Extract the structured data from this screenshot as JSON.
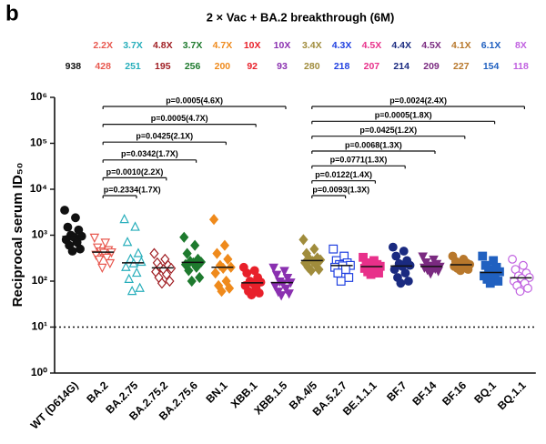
{
  "panel_label": "b",
  "chart_data": {
    "type": "scatter",
    "title": "2 × Vac + BA.2 breakthrough (6M)",
    "y_label": "Reciprocal serum ID₅₀",
    "log_y": true,
    "ylim": [
      1,
      1000000
    ],
    "yticks": [
      {
        "value": 1,
        "label": "10⁰"
      },
      {
        "value": 10,
        "label": "10¹"
      },
      {
        "value": 100,
        "label": "10²"
      },
      {
        "value": 1000,
        "label": "10³"
      },
      {
        "value": 10000,
        "label": "10⁴"
      },
      {
        "value": 100000,
        "label": "10⁵"
      },
      {
        "value": 1000000,
        "label": "10⁶"
      }
    ],
    "reference_line": 10,
    "series": [
      {
        "name": "WT (D614G)",
        "color": "#111111",
        "marker": "circle",
        "filled": true,
        "median": 938,
        "values": [
          3500,
          2400,
          1500,
          1300,
          1000,
          950,
          900,
          800,
          700,
          600,
          500,
          450
        ]
      },
      {
        "name": "BA.2",
        "color": "#e8584f",
        "marker": "triangle-down",
        "filled": false,
        "fold": "2.2X",
        "median": 428,
        "values": [
          900,
          700,
          550,
          480,
          450,
          430,
          420,
          380,
          330,
          300,
          250,
          200
        ]
      },
      {
        "name": "BA.2.75",
        "color": "#27aebb",
        "marker": "triangle",
        "filled": false,
        "fold": "3.7X",
        "median": 251,
        "values": [
          2200,
          1500,
          700,
          400,
          300,
          260,
          240,
          200,
          150,
          110,
          70,
          60
        ]
      },
      {
        "name": "BA.2.75.2",
        "color": "#a01f24",
        "marker": "diamond",
        "filled": false,
        "fold": "4.8X",
        "median": 195,
        "values": [
          400,
          300,
          250,
          220,
          200,
          190,
          180,
          160,
          140,
          120,
          100,
          90
        ]
      },
      {
        "name": "BA.2.75.6",
        "color": "#1e7a2e",
        "marker": "diamond",
        "filled": true,
        "fold": "3.7X",
        "median": 256,
        "values": [
          900,
          600,
          400,
          300,
          270,
          260,
          250,
          230,
          200,
          170,
          120,
          100
        ]
      },
      {
        "name": "BN.1",
        "color": "#ef8a1c",
        "marker": "diamond",
        "filled": true,
        "fold": "4.7X",
        "median": 200,
        "values": [
          2200,
          600,
          400,
          300,
          220,
          200,
          190,
          150,
          100,
          80,
          70,
          60
        ]
      },
      {
        "name": "XBB.1",
        "color": "#e8202a",
        "marker": "circle",
        "filled": true,
        "fold": "10X",
        "median": 92,
        "values": [
          200,
          170,
          150,
          120,
          100,
          95,
          90,
          80,
          70,
          60,
          55,
          50
        ]
      },
      {
        "name": "XBB.1.5",
        "color": "#8a30b0",
        "marker": "triangle-down",
        "filled": true,
        "fold": "10X",
        "median": 93,
        "values": [
          200,
          170,
          140,
          120,
          100,
          95,
          90,
          80,
          70,
          60,
          55,
          50
        ]
      },
      {
        "name": "BA.4/5",
        "color": "#a08c3c",
        "marker": "diamond",
        "filled": true,
        "fold": "3.4X",
        "median": 280,
        "values": [
          800,
          500,
          400,
          320,
          300,
          290,
          270,
          250,
          230,
          200,
          180,
          170
        ]
      },
      {
        "name": "BA.5.2.7",
        "color": "#2040e0",
        "marker": "square",
        "filled": false,
        "fold": "4.3X",
        "median": 218,
        "values": [
          500,
          350,
          280,
          250,
          230,
          220,
          215,
          200,
          180,
          150,
          120,
          100
        ]
      },
      {
        "name": "BE.1.1.1",
        "color": "#e8308a",
        "marker": "square",
        "filled": true,
        "fold": "4.5X",
        "median": 207,
        "values": [
          330,
          280,
          250,
          230,
          220,
          210,
          205,
          190,
          180,
          160,
          150,
          140
        ]
      },
      {
        "name": "BF.7",
        "color": "#1a2a80",
        "marker": "circle",
        "filled": true,
        "fold": "4.4X",
        "median": 214,
        "values": [
          550,
          450,
          350,
          280,
          240,
          220,
          210,
          180,
          150,
          120,
          100,
          90
        ]
      },
      {
        "name": "BF.14",
        "color": "#7a2a80",
        "marker": "triangle-down",
        "filled": true,
        "fold": "4.5X",
        "median": 209,
        "values": [
          350,
          300,
          260,
          240,
          220,
          210,
          205,
          200,
          190,
          180,
          170,
          150
        ]
      },
      {
        "name": "BF.16",
        "color": "#b8782c",
        "marker": "circle",
        "filled": true,
        "fold": "4.1X",
        "median": 227,
        "values": [
          350,
          300,
          270,
          250,
          240,
          230,
          225,
          210,
          200,
          190,
          180,
          170
        ]
      },
      {
        "name": "BQ.1",
        "color": "#2060c0",
        "marker": "square",
        "filled": true,
        "fold": "6.1X",
        "median": 154,
        "values": [
          350,
          280,
          220,
          200,
          180,
          160,
          150,
          130,
          120,
          110,
          100,
          90
        ]
      },
      {
        "name": "BQ.1.1",
        "color": "#c060e0",
        "marker": "circle",
        "filled": false,
        "fold": "8X",
        "median": 118,
        "values": [
          300,
          220,
          180,
          150,
          130,
          120,
          115,
          100,
          90,
          80,
          70,
          60
        ]
      }
    ],
    "comparisons": [
      [
        "p=0.2334(1.7X)",
        "p=0.0010(2.2X)",
        "p=0.0342(1.7X)",
        "p=0.0425(2.1X)",
        "p=0.0005(4.7X)",
        "p=0.0005(4.6X)"
      ],
      [
        "p=0.0093(1.3X)",
        "p=0.0122(1.4X)",
        "p=0.0771(1.3X)",
        "p=0.0068(1.3X)",
        "p=0.0425(1.2X)",
        "p=0.0005(1.8X)",
        "p=0.0024(2.4X)"
      ]
    ]
  }
}
